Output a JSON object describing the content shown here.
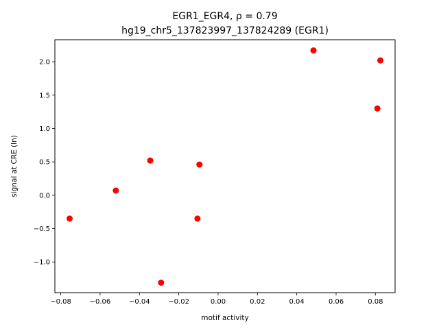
{
  "chart_data": {
    "type": "scatter",
    "title_line1": "EGR1_EGR4, ρ = 0.79",
    "title_line2": "hg19_chr5_137823997_137824289 (EGR1)",
    "xlabel": "motif activity",
    "ylabel": "signal at CRE (ln)",
    "xlim": [
      -0.083,
      0.09
    ],
    "ylim": [
      -1.46,
      2.33
    ],
    "xticks": [
      -0.08,
      -0.06,
      -0.04,
      -0.02,
      0.0,
      0.02,
      0.04,
      0.06,
      0.08
    ],
    "xtick_labels": [
      "−0.08",
      "−0.06",
      "−0.04",
      "−0.02",
      "0.00",
      "0.02",
      "0.04",
      "0.06",
      "0.08"
    ],
    "yticks": [
      -1.0,
      -0.5,
      0.0,
      0.5,
      1.0,
      1.5,
      2.0
    ],
    "ytick_labels": [
      "−1.0",
      "−0.5",
      "0.0",
      "0.5",
      "1.0",
      "1.5",
      "2.0"
    ],
    "marker_color": "#ff0000",
    "grid": false,
    "points": [
      {
        "x": -0.0755,
        "y": -0.35
      },
      {
        "x": -0.052,
        "y": 0.07
      },
      {
        "x": -0.0345,
        "y": 0.52
      },
      {
        "x": -0.029,
        "y": -1.31
      },
      {
        "x": -0.0105,
        "y": -0.35
      },
      {
        "x": -0.0095,
        "y": 0.46
      },
      {
        "x": 0.0485,
        "y": 2.17
      },
      {
        "x": 0.081,
        "y": 1.3
      },
      {
        "x": 0.0825,
        "y": 2.02
      }
    ]
  }
}
